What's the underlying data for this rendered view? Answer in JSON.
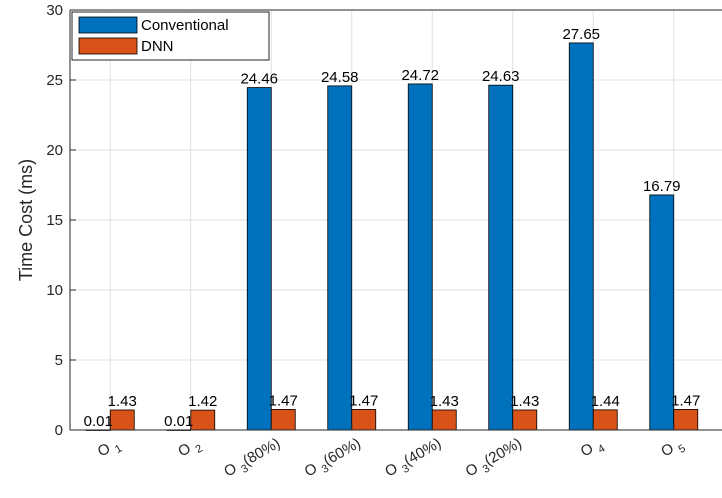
{
  "chart_data": {
    "type": "bar",
    "title": "",
    "xlabel": "",
    "ylabel": "Time Cost (ms)",
    "ylim": [
      0,
      30
    ],
    "yticks": [
      0,
      5,
      10,
      15,
      20,
      25,
      30
    ],
    "grid": true,
    "legend_position": "top-left",
    "categories": [
      {
        "base": "O",
        "sub": "1",
        "suffix": ""
      },
      {
        "base": "O",
        "sub": "2",
        "suffix": ""
      },
      {
        "base": "O",
        "sub": "3",
        "suffix": "(80%)"
      },
      {
        "base": "O",
        "sub": "3",
        "suffix": "(60%)"
      },
      {
        "base": "O",
        "sub": "3",
        "suffix": "(40%)"
      },
      {
        "base": "O",
        "sub": "3",
        "suffix": "(20%)"
      },
      {
        "base": "O",
        "sub": "4",
        "suffix": ""
      },
      {
        "base": "O",
        "sub": "5",
        "suffix": ""
      }
    ],
    "series": [
      {
        "name": "Conventional",
        "color": "#0072BD",
        "values": [
          0.01,
          0.01,
          24.46,
          24.58,
          24.72,
          24.63,
          27.65,
          16.79
        ],
        "labels": [
          "0.01",
          "0.01",
          "24.46",
          "24.58",
          "24.72",
          "24.63",
          "27.65",
          "16.79"
        ]
      },
      {
        "name": "DNN",
        "color": "#D95319",
        "values": [
          1.43,
          1.42,
          1.47,
          1.47,
          1.43,
          1.43,
          1.44,
          1.47
        ],
        "labels": [
          "1.43",
          "1.42",
          "1.47",
          "1.47",
          "1.43",
          "1.43",
          "1.44",
          "1.47"
        ]
      }
    ]
  }
}
